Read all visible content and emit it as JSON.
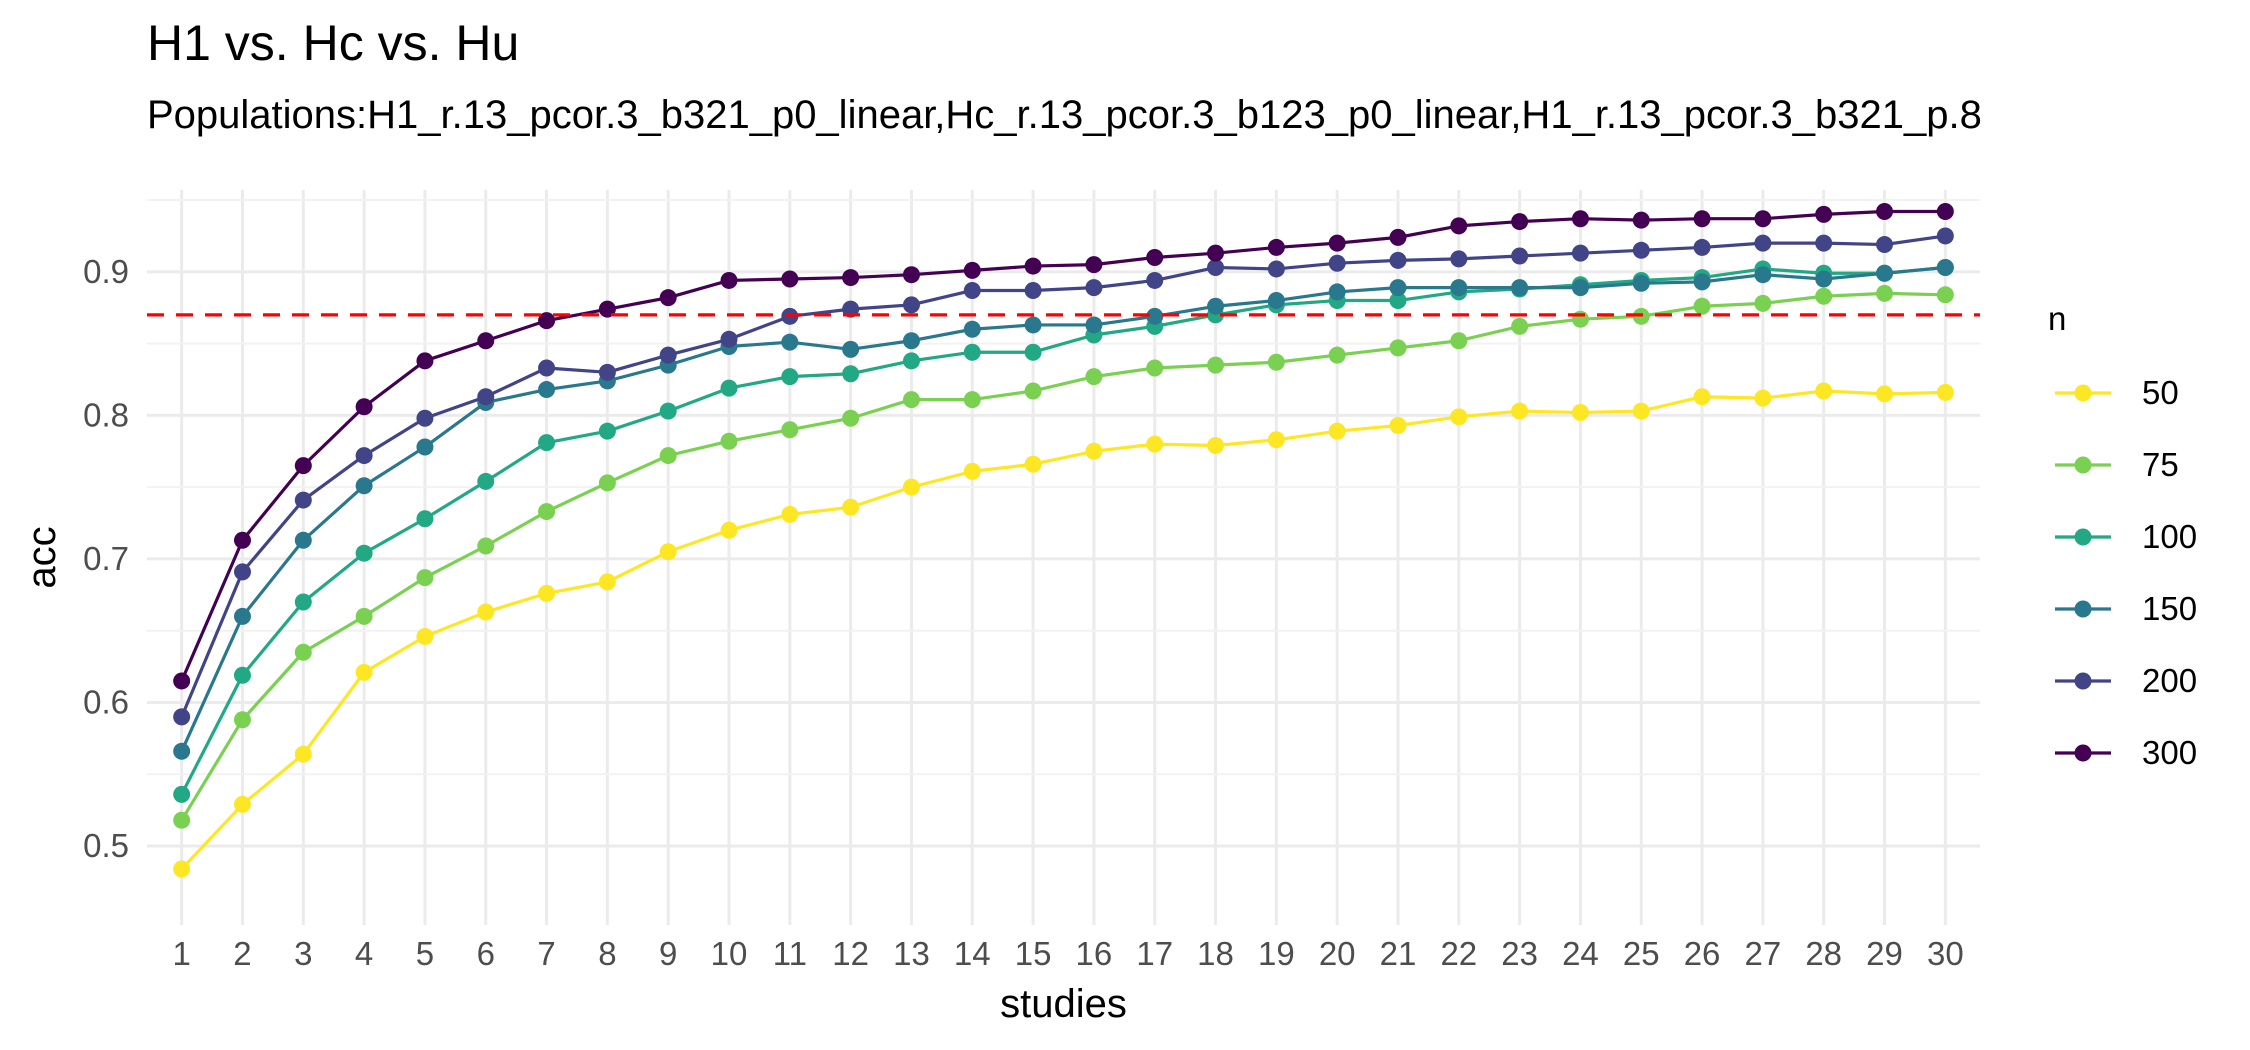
{
  "chart_data": {
    "type": "line",
    "title": "H1 vs. Hc vs. Hu",
    "subtitle": "Populations:H1_r.13_pcor.3_b321_p0_linear,Hc_r.13_pcor.3_b123_p0_linear,H1_r.13_pcor.3_b321_p.8",
    "xlabel": "studies",
    "ylabel": "acc",
    "x": [
      1,
      2,
      3,
      4,
      5,
      6,
      7,
      8,
      9,
      10,
      11,
      12,
      13,
      14,
      15,
      16,
      17,
      18,
      19,
      20,
      21,
      22,
      23,
      24,
      25,
      26,
      27,
      28,
      29,
      30
    ],
    "xlim": [
      0.43,
      30.57
    ],
    "ylim": [
      0.445,
      0.957
    ],
    "yticks": [
      0.5,
      0.6,
      0.7,
      0.8,
      0.9
    ],
    "ytick_labels": [
      "0.5",
      "0.6",
      "0.7",
      "0.8",
      "0.9"
    ],
    "grid": true,
    "reference_line": {
      "y": 0.87,
      "style": "dashed",
      "color": "#ff0000"
    },
    "legend_title": "n",
    "legend_position": "right",
    "series": [
      {
        "name": "50",
        "color": "#FDE725",
        "values": [
          0.484,
          0.529,
          0.564,
          0.621,
          0.646,
          0.663,
          0.676,
          0.684,
          0.705,
          0.72,
          0.731,
          0.736,
          0.75,
          0.761,
          0.766,
          0.775,
          0.78,
          0.779,
          0.783,
          0.789,
          0.793,
          0.799,
          0.803,
          0.802,
          0.803,
          0.813,
          0.812,
          0.817,
          0.815,
          0.816
        ]
      },
      {
        "name": "75",
        "color": "#7AD151",
        "values": [
          0.518,
          0.588,
          0.635,
          0.66,
          0.687,
          0.709,
          0.733,
          0.753,
          0.772,
          0.782,
          0.79,
          0.798,
          0.811,
          0.811,
          0.817,
          0.827,
          0.833,
          0.835,
          0.837,
          0.842,
          0.847,
          0.852,
          0.862,
          0.867,
          0.869,
          0.876,
          0.878,
          0.883,
          0.885,
          0.884
        ]
      },
      {
        "name": "100",
        "color": "#22A884",
        "values": [
          0.536,
          0.619,
          0.67,
          0.704,
          0.728,
          0.754,
          0.781,
          0.789,
          0.803,
          0.819,
          0.827,
          0.829,
          0.838,
          0.844,
          0.844,
          0.856,
          0.862,
          0.87,
          0.877,
          0.88,
          0.88,
          0.886,
          0.888,
          0.891,
          0.894,
          0.896,
          0.902,
          0.899,
          0.899,
          0.903
        ]
      },
      {
        "name": "150",
        "color": "#2A788E",
        "values": [
          0.566,
          0.66,
          0.713,
          0.751,
          0.778,
          0.809,
          0.818,
          0.824,
          0.835,
          0.848,
          0.851,
          0.846,
          0.852,
          0.86,
          0.863,
          0.863,
          0.869,
          0.876,
          0.88,
          0.886,
          0.889,
          0.889,
          0.889,
          0.889,
          0.892,
          0.893,
          0.898,
          0.895,
          0.899,
          0.903
        ]
      },
      {
        "name": "200",
        "color": "#414487",
        "values": [
          0.59,
          0.691,
          0.741,
          0.772,
          0.798,
          0.813,
          0.833,
          0.83,
          0.842,
          0.853,
          0.869,
          0.874,
          0.877,
          0.887,
          0.887,
          0.889,
          0.894,
          0.903,
          0.902,
          0.906,
          0.908,
          0.909,
          0.911,
          0.913,
          0.915,
          0.917,
          0.92,
          0.92,
          0.919,
          0.925
        ]
      },
      {
        "name": "300",
        "color": "#440154",
        "values": [
          0.615,
          0.713,
          0.765,
          0.806,
          0.838,
          0.852,
          0.866,
          0.874,
          0.882,
          0.894,
          0.895,
          0.896,
          0.898,
          0.901,
          0.904,
          0.905,
          0.91,
          0.913,
          0.917,
          0.92,
          0.924,
          0.932,
          0.935,
          0.937,
          0.936,
          0.937,
          0.937,
          0.94,
          0.942,
          0.942
        ]
      }
    ]
  }
}
